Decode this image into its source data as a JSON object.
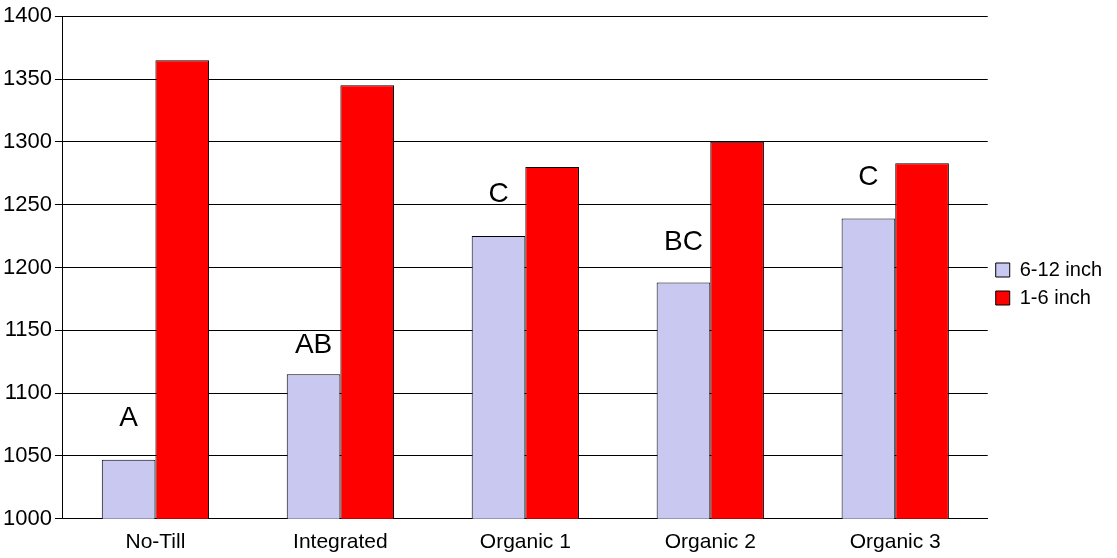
{
  "chart_data": {
    "type": "bar",
    "categories": [
      "No-Till",
      "Integrated",
      "Organic 1",
      "Organic 2",
      "Organic 3"
    ],
    "series": [
      {
        "name": "6-12 inch",
        "color": "#c8c8f0",
        "values": [
          1047,
          1115,
          1225,
          1188,
          1239
        ]
      },
      {
        "name": "1-6 inch",
        "color": "#ff0000",
        "values": [
          1365,
          1345,
          1280,
          1300,
          1283
        ]
      }
    ],
    "ylim": [
      1000,
      1400
    ],
    "yticks": [
      1000,
      1050,
      1100,
      1150,
      1200,
      1250,
      1300,
      1350,
      1400
    ],
    "grid": "y",
    "legend": "right",
    "annotations": [
      {
        "text": "A",
        "x": "No-Till",
        "y": 1080
      },
      {
        "text": "AB",
        "x": "Integrated",
        "y": 1138
      },
      {
        "text": "C",
        "x": "Organic 1",
        "y": 1258
      },
      {
        "text": "BC",
        "x": "Organic 2",
        "y": 1220
      },
      {
        "text": "C",
        "x": "Organic 3",
        "y": 1272
      }
    ]
  }
}
